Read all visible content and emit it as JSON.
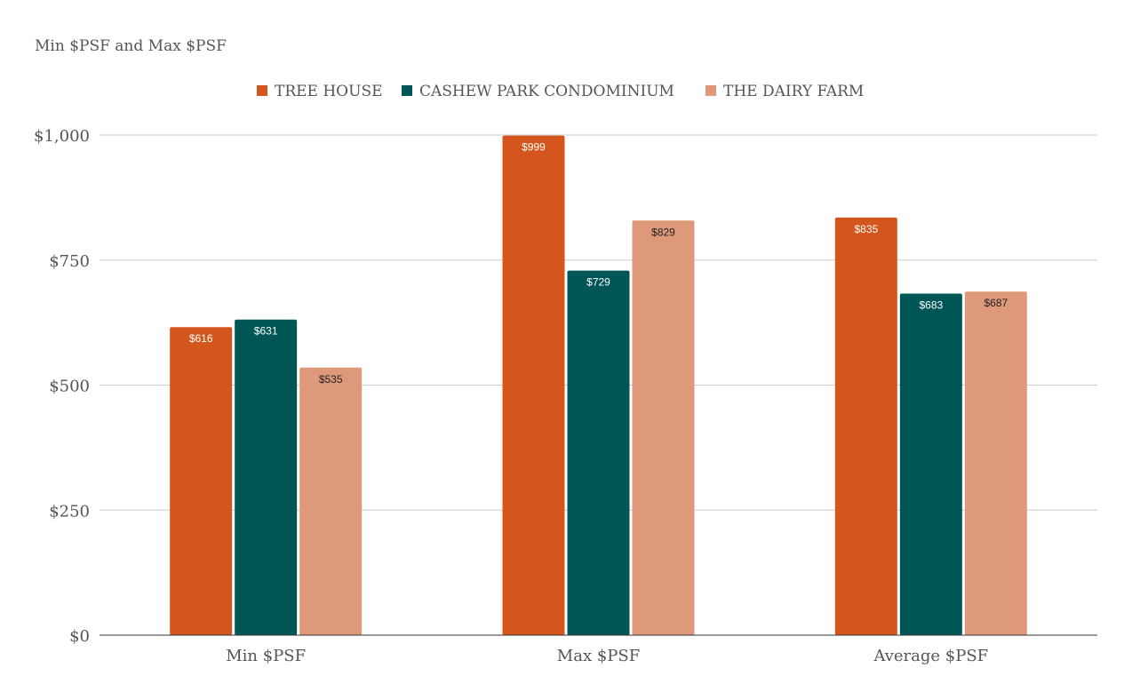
{
  "chart_data": {
    "type": "bar",
    "title": "Min $PSF and Max $PSF",
    "categories": [
      "Min $PSF",
      "Max $PSF",
      "Average $PSF"
    ],
    "series": [
      {
        "name": "TREE HOUSE",
        "values": [
          616,
          999,
          835
        ],
        "labels": [
          "$616",
          "$999",
          "$835"
        ],
        "color": "#d4561d",
        "label_color": "#ffffff"
      },
      {
        "name": "CASHEW PARK CONDOMINIUM",
        "values": [
          631,
          729,
          683
        ],
        "labels": [
          "$631",
          "$729",
          "$683"
        ],
        "color": "#005555",
        "label_color": "#ffffff"
      },
      {
        "name": "THE DAIRY FARM",
        "values": [
          535,
          829,
          687
        ],
        "labels": [
          "$535",
          "$829",
          "$687"
        ],
        "color": "#de987a",
        "label_color": "#222222"
      }
    ],
    "ylim": [
      0,
      1000
    ],
    "y_ticks": [
      0,
      250,
      500,
      750,
      1000
    ],
    "y_tick_labels": [
      "$0",
      "$250",
      "$500",
      "$750",
      "$1,000"
    ],
    "xlabel": "",
    "ylabel": "",
    "grid": true,
    "legend_position": "top-center",
    "gridline_color": "#cccccc",
    "axis_color": "#333333"
  }
}
